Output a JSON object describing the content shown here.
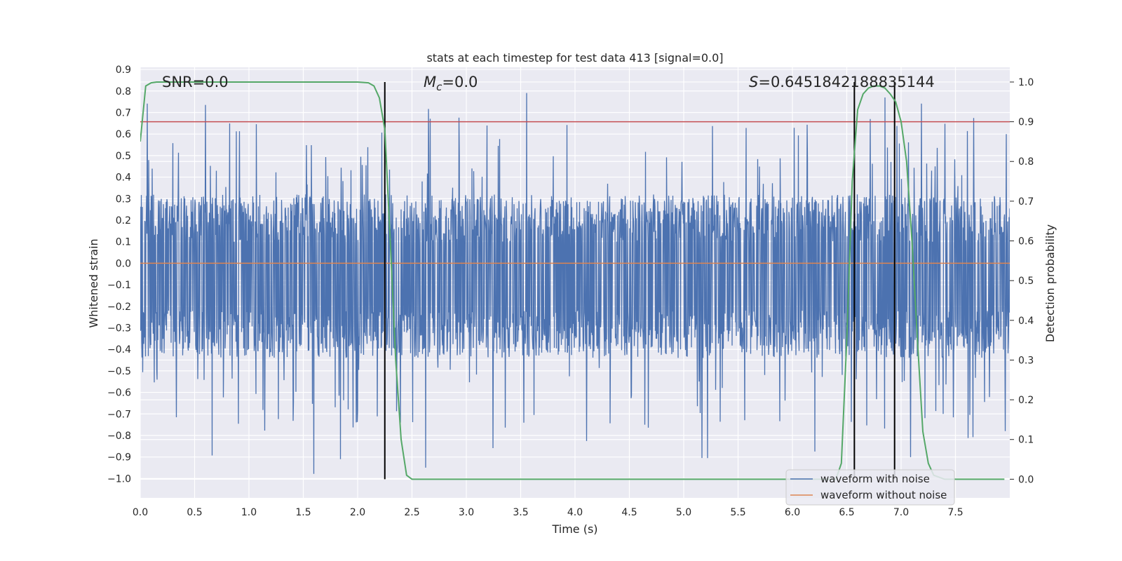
{
  "chart_data": {
    "type": "line",
    "title": "stats at each timestep for test data 413 [signal=0.0]",
    "xlabel": "Time (s)",
    "ylabel": "Whitened strain",
    "ylabel_right": "Detection probability",
    "xlim": [
      0.0,
      8.0
    ],
    "ylim": [
      -1.09,
      0.91
    ],
    "ylim_right": [
      -0.047,
      1.037
    ],
    "xticks": [
      "0.0",
      "0.5",
      "1.0",
      "1.5",
      "2.0",
      "2.5",
      "3.0",
      "3.5",
      "4.0",
      "4.5",
      "5.0",
      "5.5",
      "6.0",
      "6.5",
      "7.0",
      "7.5"
    ],
    "yticks": [
      "−1.0",
      "−0.9",
      "−0.8",
      "−0.7",
      "−0.6",
      "−0.5",
      "−0.4",
      "−0.3",
      "−0.2",
      "−0.1",
      "0.0",
      "0.1",
      "0.2",
      "0.3",
      "0.4",
      "0.5",
      "0.6",
      "0.7",
      "0.8",
      "0.9"
    ],
    "yticks_right": [
      "0.0",
      "0.1",
      "0.2",
      "0.3",
      "0.4",
      "0.5",
      "0.6",
      "0.7",
      "0.8",
      "0.9",
      "1.0"
    ],
    "annotations": {
      "snr": "SNR=0.0",
      "mc_symbol": "M",
      "mc_sub": "c",
      "mc_value": "=0.0",
      "s_symbol": "S",
      "s_value": "=0.6451842188835144"
    },
    "threshold": 0.9,
    "vertical_lines": [
      2.25,
      6.57,
      6.94
    ],
    "series": [
      {
        "name": "waveform with noise",
        "color": "#4c72b0",
        "axis": "left",
        "description": "whitened noisy strain, fills roughly -0.4 to 0.3 with spikes up to 0.82 and down to -1.0"
      },
      {
        "name": "waveform without noise",
        "color": "#dd8452",
        "axis": "left",
        "x": [
          0.0,
          8.0
        ],
        "values": [
          0.0,
          0.0
        ]
      },
      {
        "name": "detection probability",
        "color": "#55a868",
        "axis": "right",
        "x": [
          0.0,
          0.05,
          0.1,
          0.15,
          0.3,
          0.6,
          1.0,
          1.5,
          2.0,
          2.1,
          2.15,
          2.2,
          2.25,
          2.3,
          2.35,
          2.4,
          2.45,
          2.5,
          2.6,
          3.0,
          4.0,
          5.0,
          6.0,
          6.3,
          6.4,
          6.45,
          6.5,
          6.55,
          6.6,
          6.65,
          6.7,
          6.75,
          6.8,
          6.85,
          6.9,
          6.95,
          7.0,
          7.05,
          7.1,
          7.15,
          7.2,
          7.25,
          7.3,
          7.4,
          7.6,
          7.8,
          7.95
        ],
        "values": [
          0.85,
          0.99,
          0.998,
          1.0,
          1.0,
          1.0,
          1.0,
          1.0,
          1.0,
          0.998,
          0.99,
          0.96,
          0.88,
          0.6,
          0.3,
          0.1,
          0.01,
          0.0,
          0.0,
          0.0,
          0.0,
          0.0,
          0.0,
          0.0,
          0.0,
          0.04,
          0.35,
          0.75,
          0.93,
          0.97,
          0.985,
          0.99,
          0.99,
          0.985,
          0.97,
          0.95,
          0.9,
          0.8,
          0.6,
          0.35,
          0.12,
          0.04,
          0.01,
          0.0,
          0.0,
          0.0,
          0.0
        ]
      },
      {
        "name": "threshold",
        "color": "#c44e52",
        "axis": "right",
        "x": [
          0.0,
          8.0
        ],
        "values": [
          0.9,
          0.9
        ]
      }
    ],
    "legend": {
      "position": "lower-right",
      "entries": [
        {
          "label": "waveform with noise",
          "color": "#4c72b0"
        },
        {
          "label": "waveform without noise",
          "color": "#dd8452"
        }
      ]
    },
    "grid": true
  }
}
